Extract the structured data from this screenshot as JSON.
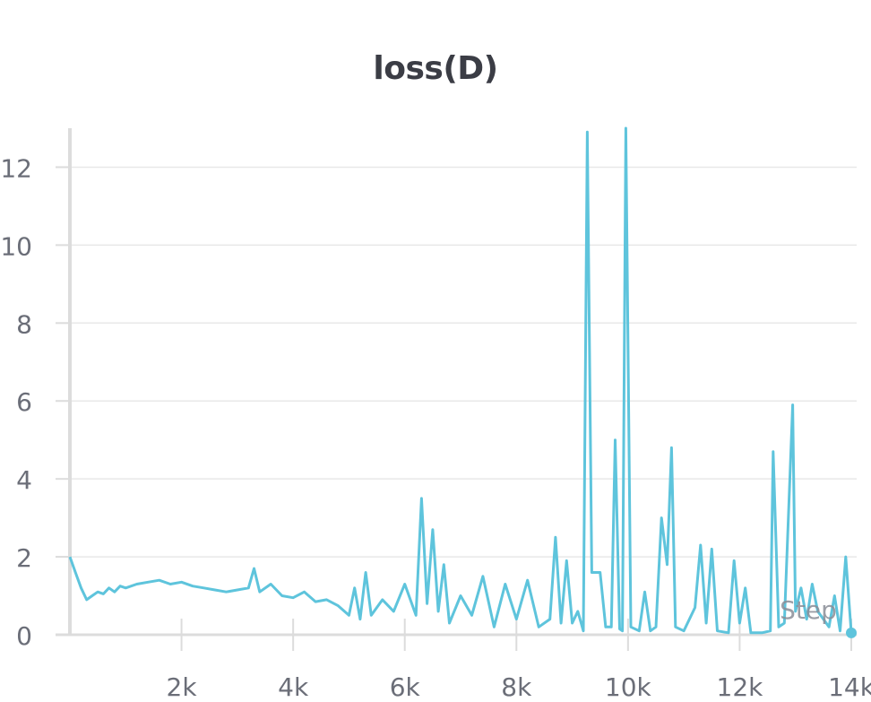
{
  "chart_data": {
    "type": "line",
    "title": "loss(D)",
    "xlabel": "Step",
    "ylabel": "",
    "xlim": [
      0,
      14000
    ],
    "ylim": [
      0,
      13
    ],
    "grid": true,
    "legend": "none",
    "x_ticks": [
      2000,
      4000,
      6000,
      8000,
      10000,
      12000,
      14000
    ],
    "x_tick_labels": [
      "2k",
      "4k",
      "6k",
      "8k",
      "10k",
      "12k",
      "14k"
    ],
    "y_ticks": [
      0,
      2,
      4,
      6,
      8,
      10,
      12
    ],
    "y_tick_labels": [
      "0",
      "2",
      "4",
      "6",
      "8",
      "10",
      "12"
    ],
    "colors": {
      "series": "#5ec4dc",
      "grid": "#e8e8e8",
      "axis": "#dcdcdc",
      "tick_text": "#6b6e78",
      "title": "#3b3d45"
    },
    "series": [
      {
        "x": [
          0,
          100,
          200,
          300,
          400,
          500,
          600,
          700,
          800,
          900,
          1000,
          1200,
          1400,
          1600,
          1800,
          2000,
          2200,
          2400,
          2600,
          2800,
          3000,
          3200,
          3300,
          3400,
          3600,
          3800,
          4000,
          4200,
          4400,
          4600,
          4800,
          5000,
          5100,
          5200,
          5300,
          5400,
          5600,
          5800,
          6000,
          6200,
          6300,
          6400,
          6500,
          6600,
          6700,
          6800,
          7000,
          7200,
          7400,
          7600,
          7800,
          8000,
          8200,
          8400,
          8600,
          8700,
          8800,
          8900,
          9000,
          9100,
          9200,
          9270,
          9350,
          9500,
          9600,
          9700,
          9770,
          9850,
          9900,
          9960,
          10050,
          10200,
          10300,
          10400,
          10500,
          10600,
          10700,
          10780,
          10850,
          11000,
          11200,
          11300,
          11400,
          11500,
          11600,
          11800,
          11900,
          12000,
          12100,
          12200,
          12400,
          12550,
          12600,
          12700,
          12800,
          12950,
          13000,
          13100,
          13200,
          13300,
          13400,
          13600,
          13700,
          13800,
          13900,
          14000
        ],
        "y": [
          2.0,
          1.6,
          1.2,
          0.9,
          1.0,
          1.1,
          1.05,
          1.2,
          1.1,
          1.25,
          1.2,
          1.3,
          1.35,
          1.4,
          1.3,
          1.35,
          1.25,
          1.2,
          1.15,
          1.1,
          1.15,
          1.2,
          1.7,
          1.1,
          1.3,
          1.0,
          0.95,
          1.1,
          0.85,
          0.9,
          0.75,
          0.5,
          1.2,
          0.4,
          1.6,
          0.5,
          0.9,
          0.6,
          1.3,
          0.5,
          3.5,
          0.8,
          2.7,
          0.6,
          1.8,
          0.3,
          1.0,
          0.5,
          1.5,
          0.2,
          1.3,
          0.4,
          1.4,
          0.2,
          0.4,
          2.5,
          0.3,
          1.9,
          0.3,
          0.6,
          0.1,
          12.9,
          1.6,
          1.6,
          0.2,
          0.2,
          5.0,
          0.15,
          0.1,
          13.0,
          0.2,
          0.1,
          1.1,
          0.1,
          0.2,
          3.0,
          1.8,
          4.8,
          0.2,
          0.1,
          0.7,
          2.3,
          0.3,
          2.2,
          0.1,
          0.05,
          1.9,
          0.3,
          1.2,
          0.05,
          0.05,
          0.1,
          4.7,
          0.2,
          0.3,
          5.9,
          0.6,
          1.2,
          0.4,
          1.3,
          0.6,
          0.2,
          1.0,
          0.1,
          2.0,
          0.05
        ]
      }
    ]
  }
}
